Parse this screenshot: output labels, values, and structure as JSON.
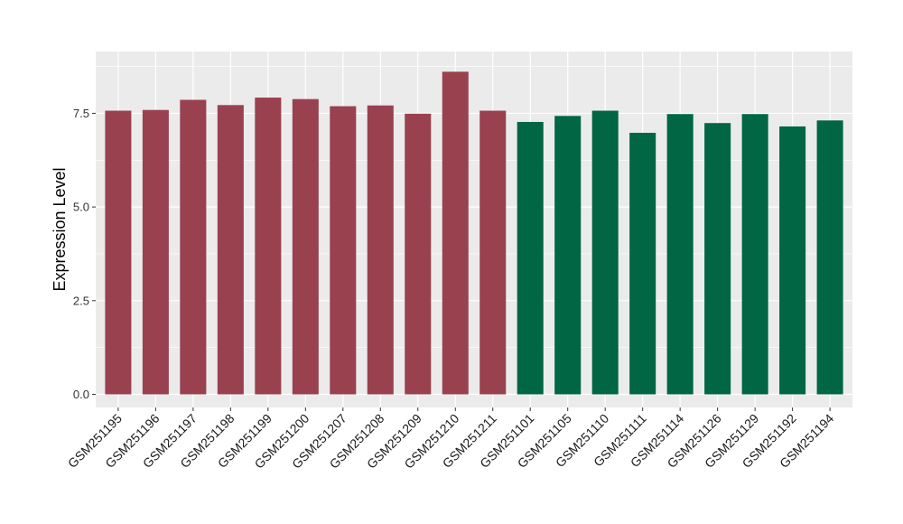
{
  "chart_data": {
    "type": "bar",
    "title": "",
    "xlabel": "",
    "ylabel": "Expression Level",
    "ylim": [
      -0.35,
      9.15
    ],
    "yticks": [
      "0.0",
      "2.5",
      "5.0",
      "7.5"
    ],
    "ytick_values": [
      0,
      2.5,
      5,
      7.5
    ],
    "grid": true,
    "legend": "none",
    "categories": [
      "GSM251195",
      "GSM251196",
      "GSM251197",
      "GSM251198",
      "GSM251199",
      "GSM251200",
      "GSM251207",
      "GSM251208",
      "GSM251209",
      "GSM251210",
      "GSM251211",
      "GSM251101",
      "GSM251105",
      "GSM251110",
      "GSM251111",
      "GSM251114",
      "GSM251126",
      "GSM251129",
      "GSM251192",
      "GSM251194"
    ],
    "values": [
      7.57,
      7.59,
      7.86,
      7.72,
      7.92,
      7.88,
      7.69,
      7.71,
      7.49,
      8.61,
      7.57,
      7.27,
      7.43,
      7.57,
      6.98,
      7.48,
      7.24,
      7.48,
      7.15,
      7.31
    ],
    "bar_colors": [
      "#99414f",
      "#99414f",
      "#99414f",
      "#99414f",
      "#99414f",
      "#99414f",
      "#99414f",
      "#99414f",
      "#99414f",
      "#99414f",
      "#99414f",
      "#006644",
      "#006644",
      "#006644",
      "#006644",
      "#006644",
      "#006644",
      "#006644",
      "#006644",
      "#006644"
    ],
    "panel_background": "#ebebeb",
    "grid_color": "#ffffff"
  }
}
